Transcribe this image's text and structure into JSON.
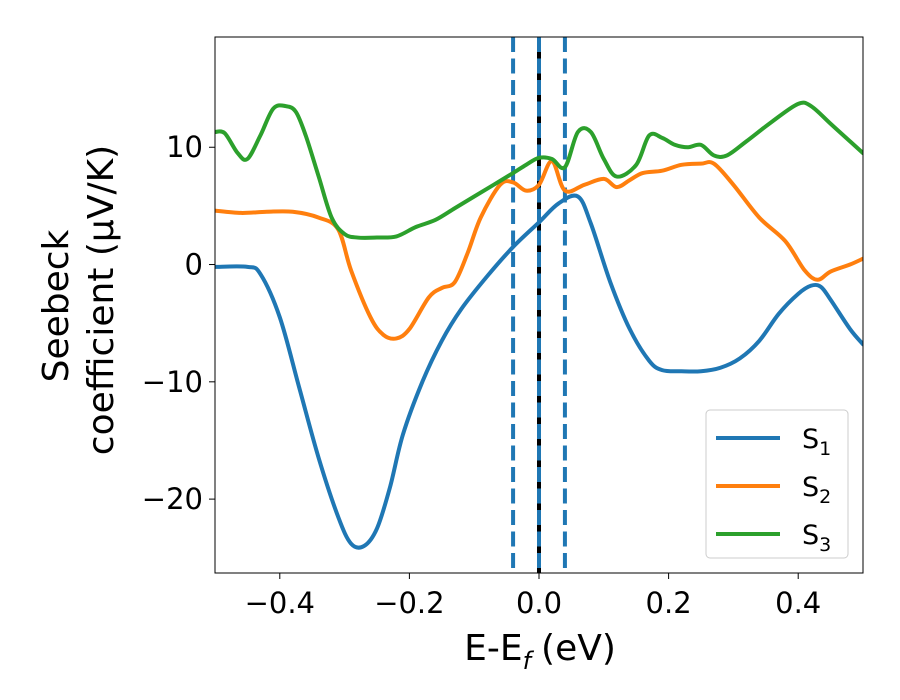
{
  "chart_data": {
    "type": "line",
    "xlabel": {
      "main": "E-E",
      "sub": "f",
      "unit": "(eV)"
    },
    "ylabel": {
      "line1": "Seebeck",
      "line2": "coefficient  (μV/K)"
    },
    "xlim": [
      -0.5,
      0.5
    ],
    "ylim": [
      -26.3,
      19.4
    ],
    "xticks": [
      -0.4,
      -0.2,
      0.0,
      0.2,
      0.4
    ],
    "xtick_labels": [
      "−0.4",
      "−0.2",
      "0.0",
      "0.2",
      "0.4"
    ],
    "yticks": [
      -20,
      -10,
      0,
      10
    ],
    "ytick_labels": [
      "−20",
      "−10",
      "0",
      "10"
    ],
    "vlines": [
      {
        "x": -0.04,
        "style": "dashed",
        "color": "#1f77b4"
      },
      {
        "x": 0.0,
        "style": "solid",
        "color": "#000000"
      },
      {
        "x": 0.0,
        "style": "dashed",
        "color": "#1f77b4"
      },
      {
        "x": 0.04,
        "style": "dashed",
        "color": "#1f77b4"
      }
    ],
    "legend_position": "lower-right",
    "series": [
      {
        "name": "S",
        "sub": "1",
        "color": "#1f77b4",
        "x": [
          -0.5,
          -0.45,
          -0.43,
          -0.4,
          -0.37,
          -0.34,
          -0.31,
          -0.29,
          -0.27,
          -0.25,
          -0.23,
          -0.21,
          -0.18,
          -0.15,
          -0.12,
          -0.08,
          -0.04,
          0.0,
          0.03,
          0.06,
          0.08,
          0.11,
          0.14,
          0.17,
          0.19,
          0.22,
          0.25,
          0.28,
          0.31,
          0.34,
          0.37,
          0.4,
          0.42,
          0.435,
          0.45,
          0.48,
          0.5
        ],
        "y": [
          -0.2,
          -0.2,
          -0.8,
          -4.5,
          -10.5,
          -16.5,
          -21.5,
          -23.8,
          -24.0,
          -22.5,
          -19.0,
          -14.5,
          -10.0,
          -6.5,
          -3.8,
          -1.0,
          1.5,
          3.6,
          5.2,
          5.8,
          3.5,
          -1.5,
          -5.5,
          -8.2,
          -9.0,
          -9.1,
          -9.1,
          -8.8,
          -8.0,
          -6.5,
          -4.2,
          -2.5,
          -1.8,
          -1.9,
          -3.0,
          -5.5,
          -6.8
        ]
      },
      {
        "name": "S",
        "sub": "2",
        "color": "#ff7f0e",
        "x": [
          -0.5,
          -0.46,
          -0.42,
          -0.38,
          -0.34,
          -0.31,
          -0.29,
          -0.26,
          -0.24,
          -0.22,
          -0.2,
          -0.17,
          -0.15,
          -0.13,
          -0.11,
          -0.09,
          -0.06,
          -0.04,
          -0.02,
          0.0,
          0.02,
          0.04,
          0.07,
          0.1,
          0.12,
          0.14,
          0.16,
          0.19,
          0.22,
          0.25,
          0.27,
          0.3,
          0.34,
          0.38,
          0.41,
          0.43,
          0.45,
          0.48,
          0.5
        ],
        "y": [
          4.6,
          4.4,
          4.5,
          4.5,
          4.0,
          3.0,
          -0.5,
          -4.5,
          -6.0,
          -6.3,
          -5.5,
          -2.8,
          -2.0,
          -1.5,
          1.0,
          4.0,
          6.8,
          7.0,
          6.3,
          6.8,
          8.8,
          6.3,
          6.8,
          7.3,
          6.6,
          7.2,
          7.8,
          8.0,
          8.5,
          8.6,
          8.6,
          6.8,
          4.0,
          2.0,
          -0.5,
          -1.3,
          -0.6,
          0.0,
          0.5
        ]
      },
      {
        "name": "S",
        "sub": "3",
        "color": "#2ca02c",
        "x": [
          -0.5,
          -0.485,
          -0.465,
          -0.45,
          -0.43,
          -0.41,
          -0.39,
          -0.375,
          -0.36,
          -0.34,
          -0.32,
          -0.3,
          -0.28,
          -0.25,
          -0.22,
          -0.19,
          -0.16,
          -0.13,
          -0.1,
          -0.07,
          -0.04,
          -0.02,
          0.0,
          0.02,
          0.04,
          0.06,
          0.08,
          0.1,
          0.12,
          0.15,
          0.17,
          0.19,
          0.21,
          0.23,
          0.25,
          0.27,
          0.29,
          0.32,
          0.36,
          0.4,
          0.42,
          0.45,
          0.48,
          0.5
        ],
        "y": [
          11.3,
          11.2,
          9.5,
          9.0,
          11.0,
          13.3,
          13.5,
          13.0,
          11.0,
          7.5,
          4.0,
          2.6,
          2.3,
          2.3,
          2.4,
          3.2,
          3.8,
          4.8,
          5.8,
          6.8,
          7.8,
          8.5,
          9.1,
          9.0,
          8.3,
          11.3,
          11.3,
          9.0,
          7.5,
          8.5,
          11.0,
          10.8,
          10.2,
          10.0,
          10.2,
          9.3,
          9.3,
          10.5,
          12.2,
          13.7,
          13.5,
          12.0,
          10.5,
          9.5
        ]
      }
    ]
  }
}
